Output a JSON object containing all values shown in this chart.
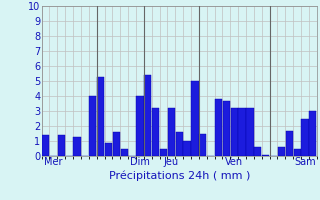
{
  "values": [
    1.4,
    0.0,
    1.4,
    0.0,
    1.3,
    0.0,
    4.0,
    5.3,
    0.9,
    1.6,
    0.5,
    0.0,
    4.0,
    5.4,
    3.2,
    0.5,
    3.2,
    1.6,
    1.0,
    5.0,
    1.5,
    0.0,
    3.8,
    3.7,
    3.2,
    3.2,
    3.2,
    0.6,
    0.1,
    0.0,
    0.6,
    1.7,
    0.5,
    2.5,
    3.0
  ],
  "day_labels": [
    "Mer",
    "Dim",
    "Jeu",
    "Ven",
    "Sam"
  ],
  "day_tick_positions": [
    1,
    12,
    16,
    24,
    33
  ],
  "vline_positions": [
    6.5,
    12.5,
    19.5,
    28.5
  ],
  "xlabel": "Précipitations 24h ( mm )",
  "ylim": [
    0,
    10
  ],
  "yticks": [
    0,
    1,
    2,
    3,
    4,
    5,
    6,
    7,
    8,
    9,
    10
  ],
  "bar_color": "#1c1cdd",
  "bar_edge_color": "#0000aa",
  "background_color": "#d8f4f4",
  "grid_color": "#c0c0c0",
  "text_color": "#1414bb",
  "xlabel_fontsize": 8,
  "tick_fontsize": 7,
  "vline_color": "#666666"
}
